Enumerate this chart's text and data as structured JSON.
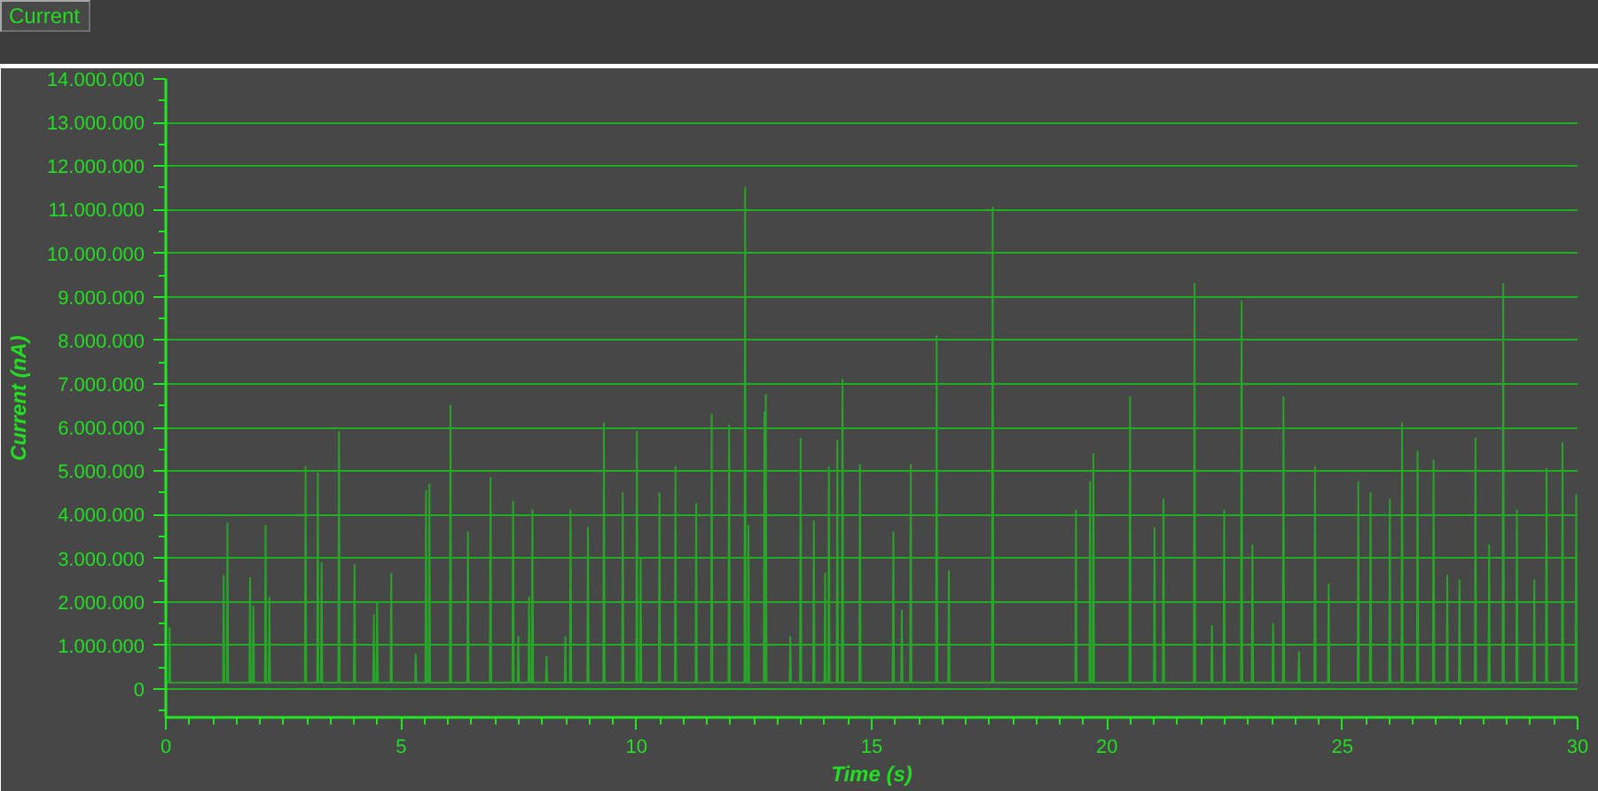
{
  "chart_data": {
    "type": "line",
    "title": "Current",
    "xlabel": "Time (s)",
    "ylabel": "Current (nA)",
    "xlim": [
      0,
      30
    ],
    "ylim": [
      -650000,
      14000000
    ],
    "xticks": [
      0,
      {
        "value": 0.5,
        "label": null
      },
      {
        "value": 1,
        "label": null
      },
      {
        "value": 1.5,
        "label": null
      },
      {
        "value": 2,
        "label": null
      },
      {
        "value": 2.5,
        "label": null
      },
      {
        "value": 3,
        "label": null
      },
      {
        "value": 3.5,
        "label": null
      },
      {
        "value": 4,
        "label": null
      },
      {
        "value": 4.5,
        "label": null
      },
      5,
      {
        "value": 5.5,
        "label": null
      },
      {
        "value": 6,
        "label": null
      },
      {
        "value": 6.5,
        "label": null
      },
      {
        "value": 7,
        "label": null
      },
      {
        "value": 7.5,
        "label": null
      },
      {
        "value": 8,
        "label": null
      },
      {
        "value": 8.5,
        "label": null
      },
      {
        "value": 9,
        "label": null
      },
      {
        "value": 9.5,
        "label": null
      },
      10,
      {
        "value": 10.5,
        "label": null
      },
      {
        "value": 11,
        "label": null
      },
      {
        "value": 11.5,
        "label": null
      },
      {
        "value": 12,
        "label": null
      },
      {
        "value": 12.5,
        "label": null
      },
      {
        "value": 13,
        "label": null
      },
      {
        "value": 13.5,
        "label": null
      },
      {
        "value": 14,
        "label": null
      },
      {
        "value": 14.5,
        "label": null
      },
      15,
      {
        "value": 15.5,
        "label": null
      },
      {
        "value": 16,
        "label": null
      },
      {
        "value": 16.5,
        "label": null
      },
      {
        "value": 17,
        "label": null
      },
      {
        "value": 17.5,
        "label": null
      },
      {
        "value": 18,
        "label": null
      },
      {
        "value": 18.5,
        "label": null
      },
      {
        "value": 19,
        "label": null
      },
      {
        "value": 19.5,
        "label": null
      },
      20,
      {
        "value": 20.5,
        "label": null
      },
      {
        "value": 21,
        "label": null
      },
      {
        "value": 21.5,
        "label": null
      },
      {
        "value": 22,
        "label": null
      },
      {
        "value": 22.5,
        "label": null
      },
      {
        "value": 23,
        "label": null
      },
      {
        "value": 23.5,
        "label": null
      },
      {
        "value": 24,
        "label": null
      },
      {
        "value": 24.5,
        "label": null
      },
      25,
      {
        "value": 25.5,
        "label": null
      },
      {
        "value": 26,
        "label": null
      },
      {
        "value": 26.5,
        "label": null
      },
      {
        "value": 27,
        "label": null
      },
      {
        "value": 27.5,
        "label": null
      },
      {
        "value": 28,
        "label": null
      },
      {
        "value": 28.5,
        "label": null
      },
      {
        "value": 29,
        "label": null
      },
      {
        "value": 29.5,
        "label": null
      },
      30
    ],
    "yticks": [
      {
        "value": -500000,
        "label": null
      },
      0,
      {
        "value": 500000,
        "label": null
      },
      {
        "value": 1000000,
        "label": "1.000.000"
      },
      {
        "value": 1500000,
        "label": null
      },
      {
        "value": 2000000,
        "label": "2.000.000"
      },
      {
        "value": 2500000,
        "label": null
      },
      {
        "value": 3000000,
        "label": "3.000.000"
      },
      {
        "value": 3500000,
        "label": null
      },
      {
        "value": 4000000,
        "label": "4.000.000"
      },
      {
        "value": 4500000,
        "label": null
      },
      {
        "value": 5000000,
        "label": "5.000.000"
      },
      {
        "value": 5500000,
        "label": null
      },
      {
        "value": 6000000,
        "label": "6.000.000"
      },
      {
        "value": 6500000,
        "label": null
      },
      {
        "value": 7000000,
        "label": "7.000.000"
      },
      {
        "value": 7500000,
        "label": null
      },
      {
        "value": 8000000,
        "label": "8.000.000"
      },
      {
        "value": 8500000,
        "label": null
      },
      {
        "value": 9000000,
        "label": "9.000.000"
      },
      {
        "value": 9500000,
        "label": null
      },
      {
        "value": 10000000,
        "label": "10.000.000"
      },
      {
        "value": 10500000,
        "label": null
      },
      {
        "value": 11000000,
        "label": "11.000.000"
      },
      {
        "value": 11500000,
        "label": null
      },
      {
        "value": 12000000,
        "label": "12.000.000"
      },
      {
        "value": 12500000,
        "label": null
      },
      {
        "value": 13000000,
        "label": "13.000.000"
      },
      {
        "value": 13500000,
        "label": null
      },
      {
        "value": 14000000,
        "label": "14.000.000"
      }
    ],
    "grid": "y",
    "line_style": "solid",
    "x": [
      0,
      0.065,
      0.08,
      0.095,
      1.215,
      1.23,
      1.245,
      1.295,
      1.31,
      1.325,
      1.775,
      1.79,
      1.805,
      1.845,
      1.86,
      1.875,
      2.105,
      2.12,
      2.135,
      2.185,
      2.2,
      2.215,
      2.955,
      2.97,
      2.985,
      3.215,
      3.23,
      3.245,
      3.295,
      3.31,
      3.325,
      3.665,
      3.68,
      3.695,
      3.995,
      4.01,
      4.025,
      4.405,
      4.42,
      4.435,
      4.475,
      4.49,
      4.505,
      4.775,
      4.79,
      4.805,
      5.295,
      5.31,
      5.325,
      5.515,
      5.53,
      5.545,
      5.585,
      5.6,
      5.615,
      6.035,
      6.05,
      6.065,
      6.405,
      6.42,
      6.435,
      6.885,
      6.9,
      6.915,
      7.365,
      7.38,
      7.395,
      7.475,
      7.49,
      7.505,
      7.705,
      7.72,
      7.735,
      7.775,
      7.79,
      7.805,
      8.075,
      8.09,
      8.105,
      8.475,
      8.49,
      8.505,
      8.585,
      8.6,
      8.615,
      8.955,
      8.97,
      8.985,
      9.295,
      9.31,
      9.325,
      9.695,
      9.71,
      9.725,
      9.995,
      10.01,
      10.025,
      10.075,
      10.09,
      10.105,
      10.475,
      10.49,
      10.505,
      10.815,
      10.83,
      10.845,
      11.255,
      11.27,
      11.285,
      11.585,
      11.6,
      11.615,
      11.955,
      11.97,
      11.985,
      12.295,
      12.31,
      12.325,
      12.365,
      12.38,
      12.395,
      12.705,
      12.72,
      12.735,
      12.735,
      12.75,
      12.765,
      13.255,
      13.27,
      13.285,
      13.475,
      13.49,
      13.505,
      13.755,
      13.77,
      13.785,
      13.995,
      14.01,
      14.025,
      14.075,
      14.09,
      14.105,
      14.255,
      14.27,
      14.285,
      14.365,
      14.38,
      14.395,
      14.735,
      14.75,
      14.765,
      15.445,
      15.46,
      15.475,
      15.625,
      15.64,
      15.655,
      15.815,
      15.83,
      15.845,
      16.365,
      16.38,
      16.395,
      16.625,
      16.64,
      16.655,
      17.555,
      17.57,
      17.585,
      19.325,
      19.34,
      19.355,
      19.625,
      19.64,
      19.655,
      19.695,
      19.71,
      19.725,
      20.475,
      20.49,
      20.505,
      20.995,
      21.01,
      21.025,
      21.185,
      21.2,
      21.215,
      21.845,
      21.86,
      21.875,
      22.215,
      22.23,
      22.245,
      22.475,
      22.49,
      22.505,
      22.845,
      22.86,
      22.875,
      23.075,
      23.09,
      23.105,
      23.515,
      23.53,
      23.545,
      23.735,
      23.75,
      23.765,
      24.065,
      24.08,
      24.095,
      24.405,
      24.42,
      24.435,
      24.695,
      24.71,
      24.725,
      25.325,
      25.34,
      25.355,
      25.585,
      25.6,
      25.615,
      25.995,
      26.01,
      26.025,
      26.255,
      26.27,
      26.285,
      26.585,
      26.6,
      26.615,
      26.925,
      26.94,
      26.955,
      27.215,
      27.23,
      27.245,
      27.475,
      27.49,
      27.505,
      27.815,
      27.83,
      27.845,
      28.105,
      28.12,
      28.135,
      28.405,
      28.42,
      28.435,
      28.695,
      28.71,
      28.725,
      29.065,
      29.08,
      29.095,
      29.325,
      29.34,
      29.355,
      29.665,
      29.68,
      29.695,
      29.955,
      29.97,
      29.985,
      30
    ],
    "series": [
      {
        "color": "#29a329",
        "values": [
          150000,
          150000,
          1400000,
          150000,
          150000,
          2600000,
          150000,
          150000,
          3800000,
          150000,
          150000,
          2550000,
          150000,
          150000,
          1900000,
          150000,
          150000,
          3750000,
          150000,
          150000,
          2100000,
          150000,
          150000,
          5100000,
          150000,
          150000,
          4950000,
          150000,
          150000,
          2900000,
          150000,
          150000,
          5900000,
          150000,
          150000,
          2850000,
          150000,
          150000,
          1700000,
          150000,
          150000,
          2000000,
          150000,
          150000,
          2650000,
          150000,
          150000,
          800000,
          150000,
          150000,
          4550000,
          150000,
          150000,
          4700000,
          150000,
          150000,
          6500000,
          150000,
          150000,
          3600000,
          150000,
          150000,
          4850000,
          150000,
          150000,
          4300000,
          150000,
          150000,
          1200000,
          150000,
          150000,
          2100000,
          150000,
          150000,
          4100000,
          150000,
          150000,
          750000,
          150000,
          150000,
          1200000,
          150000,
          150000,
          4100000,
          150000,
          150000,
          3700000,
          150000,
          150000,
          6100000,
          150000,
          150000,
          4500000,
          150000,
          150000,
          5900000,
          150000,
          150000,
          3000000,
          150000,
          150000,
          4500000,
          150000,
          150000,
          5100000,
          150000,
          150000,
          4250000,
          150000,
          150000,
          6300000,
          150000,
          150000,
          6050000,
          150000,
          150000,
          11500000,
          150000,
          150000,
          3750000,
          150000,
          150000,
          6350000,
          150000,
          150000,
          6750000,
          150000,
          150000,
          1200000,
          150000,
          150000,
          5750000,
          150000,
          150000,
          3850000,
          150000,
          150000,
          2650000,
          150000,
          150000,
          5100000,
          150000,
          150000,
          5700000,
          150000,
          150000,
          7100000,
          150000,
          150000,
          5150000,
          150000,
          150000,
          3600000,
          150000,
          150000,
          1800000,
          150000,
          150000,
          5150000,
          150000,
          150000,
          8100000,
          150000,
          150000,
          2700000,
          150000,
          150000,
          11050000,
          150000,
          150000,
          4100000,
          150000,
          150000,
          4750000,
          150000,
          150000,
          5400000,
          150000,
          150000,
          6700000,
          150000,
          150000,
          3700000,
          150000,
          150000,
          4350000,
          150000,
          150000,
          9300000,
          150000,
          150000,
          1450000,
          150000,
          150000,
          4100000,
          150000,
          150000,
          8900000,
          150000,
          150000,
          3300000,
          150000,
          150000,
          1500000,
          150000,
          150000,
          6700000,
          150000,
          150000,
          850000,
          150000,
          150000,
          5100000,
          150000,
          150000,
          2400000,
          150000,
          150000,
          4750000,
          150000,
          150000,
          4500000,
          150000,
          150000,
          4350000,
          150000,
          150000,
          6100000,
          150000,
          150000,
          5450000,
          150000,
          150000,
          5250000,
          150000,
          150000,
          2600000,
          150000,
          150000,
          2500000,
          150000,
          150000,
          5750000,
          150000,
          150000,
          3300000,
          150000,
          150000,
          9300000,
          150000,
          150000,
          4100000,
          150000,
          150000,
          2500000,
          150000,
          150000,
          5050000,
          150000,
          150000,
          5650000,
          150000,
          150000,
          4450000,
          150000,
          150000
        ]
      }
    ]
  }
}
